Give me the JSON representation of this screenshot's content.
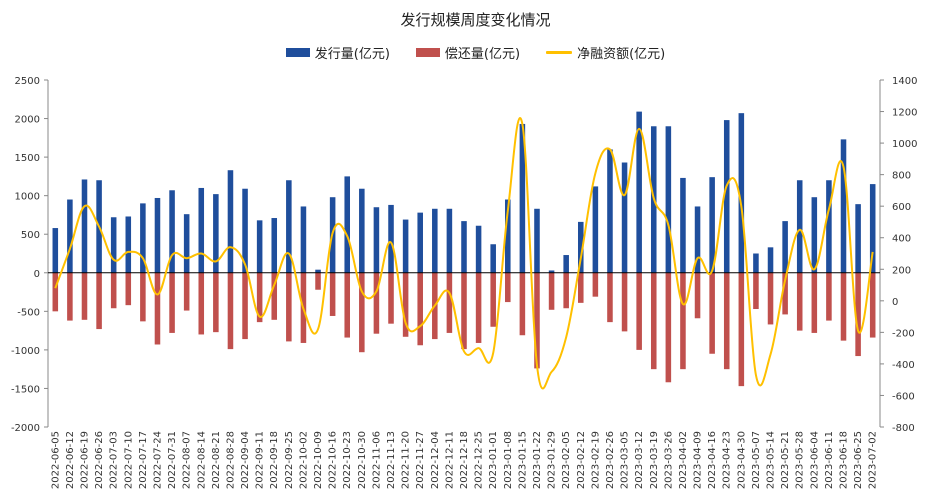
{
  "chart_data": {
    "type": "bar+line",
    "title": "发行规模周度变化情况",
    "categories": [
      "2022-06-05",
      "2022-06-12",
      "2022-06-19",
      "2022-06-26",
      "2022-07-03",
      "2022-07-10",
      "2022-07-17",
      "2022-07-24",
      "2022-07-31",
      "2022-08-07",
      "2022-08-14",
      "2022-08-21",
      "2022-08-28",
      "2022-09-04",
      "2022-09-11",
      "2022-09-18",
      "2022-09-25",
      "2022-10-02",
      "2022-10-09",
      "2022-10-16",
      "2022-10-23",
      "2022-10-30",
      "2022-11-06",
      "2022-11-13",
      "2022-11-20",
      "2022-11-27",
      "2022-12-04",
      "2022-12-11",
      "2022-12-18",
      "2022-12-25",
      "2023-01-01",
      "2023-01-08",
      "2023-01-15",
      "2023-01-22",
      "2023-01-29",
      "2023-02-05",
      "2023-02-12",
      "2023-02-19",
      "2023-02-26",
      "2023-03-05",
      "2023-03-12",
      "2023-03-19",
      "2023-03-26",
      "2023-04-02",
      "2023-04-09",
      "2023-04-16",
      "2023-04-23",
      "2023-04-30",
      "2023-05-07",
      "2023-05-14",
      "2023-05-21",
      "2023-05-28",
      "2023-06-04",
      "2023-06-11",
      "2023-06-18",
      "2023-06-25",
      "2023-07-02"
    ],
    "series": [
      {
        "name": "发行量(亿元)",
        "type": "bar",
        "axis": "left",
        "color": "#1F4E9C",
        "values": [
          580,
          950,
          1210,
          1200,
          720,
          730,
          900,
          970,
          1070,
          760,
          1100,
          1020,
          1330,
          1090,
          680,
          710,
          1200,
          860,
          40,
          980,
          1250,
          1090,
          850,
          880,
          690,
          780,
          830,
          830,
          670,
          610,
          370,
          950,
          1930,
          830,
          30,
          230,
          660,
          1120,
          1600,
          1430,
          2090,
          1900,
          1900,
          1230,
          860,
          1240,
          1980,
          2070,
          250,
          330,
          670,
          1200,
          980,
          1200,
          1730,
          890,
          1150
        ]
      },
      {
        "name": "偿还量(亿元)",
        "type": "bar",
        "axis": "left",
        "color": "#C0504D",
        "values": [
          -500,
          -620,
          -610,
          -730,
          -460,
          -420,
          -630,
          -930,
          -780,
          -490,
          -800,
          -770,
          -990,
          -860,
          -640,
          -610,
          -890,
          -910,
          -220,
          -560,
          -840,
          -1030,
          -790,
          -660,
          -830,
          -940,
          -860,
          -780,
          -990,
          -910,
          -700,
          -380,
          -810,
          -1240,
          -480,
          -460,
          -390,
          -310,
          -640,
          -760,
          -1000,
          -1250,
          -1420,
          -1250,
          -590,
          -1050,
          -1250,
          -1470,
          -470,
          -670,
          -540,
          -750,
          -780,
          -620,
          -880,
          -1080,
          -840
        ]
      },
      {
        "name": "净融资额(亿元)",
        "type": "line",
        "axis": "right",
        "color": "#FFC000",
        "values": [
          80,
          330,
          600,
          470,
          260,
          310,
          270,
          40,
          290,
          270,
          300,
          250,
          340,
          230,
          -100,
          100,
          300,
          -50,
          -180,
          430,
          410,
          60,
          60,
          370,
          -140,
          -160,
          -30,
          50,
          -320,
          -300,
          -330,
          570,
          1120,
          -410,
          -450,
          -230,
          270,
          810,
          960,
          670,
          1090,
          650,
          480,
          -20,
          270,
          190,
          730,
          600,
          -470,
          -340,
          130,
          450,
          200,
          580,
          850,
          -190,
          310
        ]
      }
    ],
    "y_left": {
      "min": -2000,
      "max": 2500,
      "ticks": [
        -2000,
        -1500,
        -1000,
        -500,
        0,
        500,
        1000,
        1500,
        2000,
        2500
      ]
    },
    "y_right": {
      "min": -800,
      "max": 1400,
      "ticks": [
        -800,
        -600,
        -400,
        -200,
        0,
        200,
        400,
        600,
        800,
        1000,
        1200,
        1400
      ]
    },
    "legend": {
      "position": "top"
    }
  }
}
